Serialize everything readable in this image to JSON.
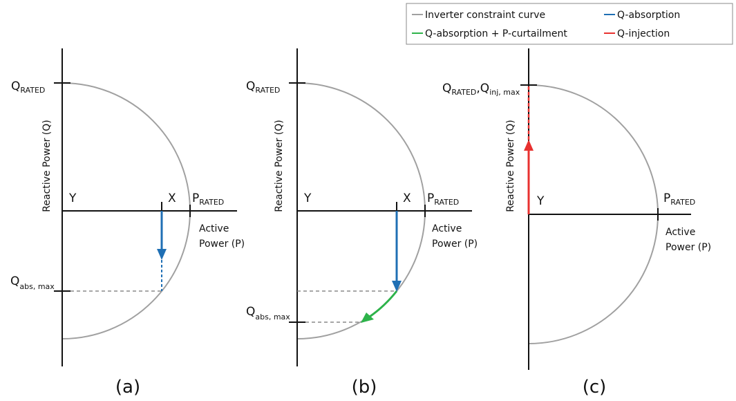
{
  "legend": [
    {
      "label": "Inverter constraint curve",
      "color": "#a0a0a0"
    },
    {
      "label": "Q-absorption",
      "color": "#1f6fb4"
    },
    {
      "label": "Q-absorption + P-curtailment",
      "color": "#2db34a"
    },
    {
      "label": "Q-injection",
      "color": "#e8312f"
    }
  ],
  "panels": [
    {
      "caption": "(a)",
      "y_axis_label": "Reactive Power (Q)",
      "x_axis_label": [
        "Active",
        "Power (P)"
      ],
      "q_rated": {
        "main": "Q",
        "sub": "RATED"
      },
      "p_rated": {
        "main": "P",
        "sub": "RATED"
      },
      "origin": "Y",
      "point": "X",
      "q_abs_max": {
        "main": "Q",
        "sub": "abs, max"
      }
    },
    {
      "caption": "(b)",
      "y_axis_label": "Reactive Power (Q)",
      "x_axis_label": [
        "Active",
        "Power (P)"
      ],
      "q_rated": {
        "main": "Q",
        "sub": "RATED"
      },
      "p_rated": {
        "main": "P",
        "sub": "RATED"
      },
      "origin": "Y",
      "point": "X",
      "q_abs_max": {
        "main": "Q",
        "sub": "abs, max"
      }
    },
    {
      "caption": "(c)",
      "y_axis_label": "Reactive Power (Q)",
      "x_axis_label": [
        "Active",
        "Power (P)"
      ],
      "q_label": [
        {
          "main": "Q",
          "sub": "RATED"
        },
        {
          "main": ",Q",
          "sub": "inj, max"
        }
      ],
      "p_rated": {
        "main": "P",
        "sub": "RATED"
      },
      "origin": "Y"
    }
  ]
}
